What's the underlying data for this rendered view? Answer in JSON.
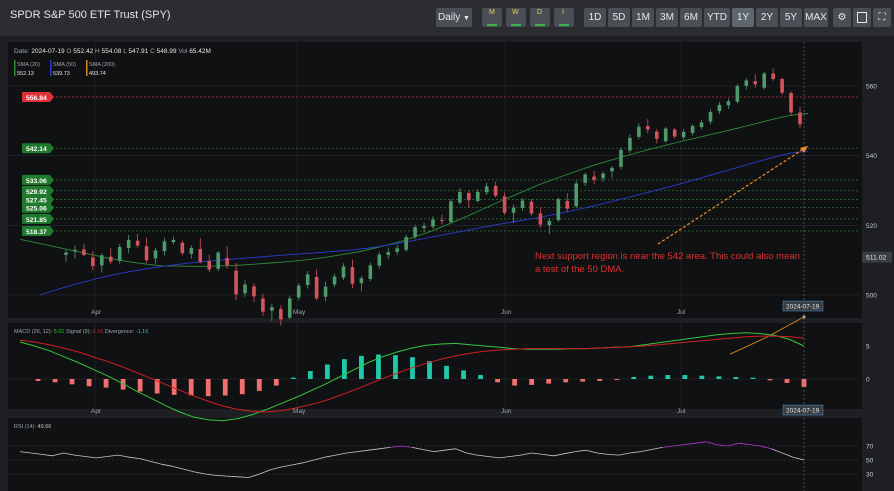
{
  "app": {
    "title": "SPDR S&P 500 ETF Trust (SPY)"
  },
  "toolbar": {
    "interval_label": "Daily",
    "period_buttons": [
      "M",
      "W",
      "D",
      "I"
    ],
    "ranges": [
      "1D",
      "5D",
      "1M",
      "3M",
      "6M",
      "YTD",
      "1Y",
      "2Y",
      "5Y",
      "MAX"
    ],
    "active_range": "1Y",
    "right_icons": [
      "settings-icon",
      "calculator-icon",
      "fullscreen-icon"
    ]
  },
  "ohlc": {
    "date_label": "Date:",
    "date": "2024-07-19",
    "o_label": "O",
    "o": "552.42",
    "h_label": "H",
    "h": "554.08",
    "l_label": "L",
    "l": "547.91",
    "c_label": "C",
    "c": "548.99",
    "vol_label": "Vol",
    "vol": "65.42M"
  },
  "sma_legend": [
    {
      "label": "SMA (20)",
      "value": "552.13",
      "color": "#2e8b3a"
    },
    {
      "label": "SMA (50)",
      "value": "539.73",
      "color": "#2a3bd1"
    },
    {
      "label": "SMA (200)",
      "value": "493.74",
      "color": "#d48a1c"
    }
  ],
  "price_tags": [
    {
      "text": "556.84",
      "price": 556.84,
      "color": "#e0303a"
    },
    {
      "text": "542.14",
      "price": 542.14,
      "color": "#1f7a2e"
    },
    {
      "text": "533.06",
      "price": 533.06,
      "color": "#1f7a2e"
    },
    {
      "text": "529.92",
      "price": 529.92,
      "color": "#1f7a2e"
    },
    {
      "text": "527.45",
      "price": 527.45,
      "color": "#1f7a2e"
    },
    {
      "text": "525.06",
      "price": 525.06,
      "color": "#1f7a2e"
    },
    {
      "text": "521.85",
      "price": 521.85,
      "color": "#1f7a2e"
    },
    {
      "text": "518.37",
      "price": 518.37,
      "color": "#1f7a2e"
    }
  ],
  "last_price_tag": "511.02",
  "annotation": "Next support region is near the 542 area.  This could also mean a test of the 50 DMA.",
  "macd_legend": {
    "label": "MACD (26, 12):",
    "macd": "5.01",
    "signal_label": "Signal (9):",
    "signal": "6.16",
    "div_label": "Divergence:",
    "div": "-1.16"
  },
  "rsi_legend": {
    "label": "RSI (14):",
    "value": "49.66"
  },
  "colors": {
    "up": "#4f9a6a",
    "down": "#d3545c",
    "macd_line": "#35c43e",
    "signal_line": "#d01f24",
    "hist_up": "#20c9a9",
    "hist_down": "#ef6f6f",
    "rsi_line": "#c9c9c9",
    "rsi_over": "#b23bd0",
    "annotation": "#e03030",
    "arrow": "#f08a2c"
  },
  "chart_data": [
    {
      "type": "candlestick",
      "title": "SPDR S&P 500 ETF Trust (SPY)",
      "x_labels": [
        "Apr",
        "May",
        "Jun",
        "Jul"
      ],
      "last_date": "2024-07-19",
      "ylim": [
        490,
        565
      ],
      "yticks": [
        500,
        520,
        540,
        560
      ],
      "grid": true,
      "ohlc": [
        [
          511.5,
          513.0,
          509.5,
          512.2
        ],
        [
          512.5,
          514.2,
          510.5,
          513.0
        ],
        [
          513.1,
          514.8,
          511.2,
          511.5
        ],
        [
          510.8,
          512.6,
          507.0,
          508.3
        ],
        [
          508.5,
          512.0,
          506.4,
          511.4
        ],
        [
          511.0,
          513.4,
          508.9,
          509.6
        ],
        [
          509.8,
          514.7,
          509.0,
          513.8
        ],
        [
          513.5,
          517.2,
          512.0,
          515.8
        ],
        [
          515.6,
          517.5,
          513.6,
          514.2
        ],
        [
          514.0,
          516.4,
          509.2,
          510.0
        ],
        [
          510.5,
          513.6,
          509.0,
          512.8
        ],
        [
          512.6,
          516.4,
          511.3,
          515.4
        ],
        [
          515.2,
          516.8,
          514.5,
          515.8
        ],
        [
          515.0,
          515.6,
          511.4,
          512.0
        ],
        [
          511.8,
          514.3,
          510.4,
          513.5
        ],
        [
          513.2,
          516.3,
          509.0,
          509.5
        ],
        [
          509.8,
          511.6,
          506.5,
          507.3
        ],
        [
          507.5,
          512.6,
          506.8,
          512.2
        ],
        [
          510.6,
          514.0,
          507.6,
          508.6
        ],
        [
          507.0,
          509.2,
          498.5,
          500.2
        ],
        [
          500.5,
          504.2,
          499.5,
          503.0
        ],
        [
          502.5,
          503.4,
          498.0,
          499.6
        ],
        [
          499.0,
          500.4,
          494.0,
          495.2
        ],
        [
          495.5,
          497.5,
          492.5,
          496.5
        ],
        [
          496.0,
          497.0,
          491.2,
          493.0
        ],
        [
          493.5,
          499.8,
          493.0,
          499.0
        ],
        [
          499.3,
          503.3,
          498.5,
          502.7
        ],
        [
          502.9,
          506.9,
          501.8,
          505.9
        ],
        [
          505.2,
          507.3,
          498.5,
          499.0
        ],
        [
          499.5,
          503.9,
          498.2,
          502.4
        ],
        [
          503.0,
          506.1,
          502.3,
          505.3
        ],
        [
          505.0,
          509.1,
          504.3,
          508.2
        ],
        [
          508.0,
          510.2,
          502.0,
          503.2
        ],
        [
          503.4,
          505.5,
          501.1,
          504.8
        ],
        [
          504.6,
          509.3,
          504.0,
          508.5
        ],
        [
          508.4,
          512.4,
          507.6,
          511.6
        ],
        [
          511.5,
          513.6,
          510.3,
          512.3
        ],
        [
          512.4,
          514.4,
          511.5,
          513.4
        ],
        [
          513.0,
          517.3,
          512.4,
          516.6
        ],
        [
          516.8,
          520.2,
          516.0,
          519.5
        ],
        [
          519.2,
          520.8,
          518.0,
          519.8
        ],
        [
          519.6,
          522.6,
          519.0,
          521.7
        ],
        [
          521.5,
          523.1,
          520.3,
          521.2
        ],
        [
          521.0,
          527.5,
          520.6,
          526.9
        ],
        [
          526.5,
          530.7,
          526.0,
          529.6
        ],
        [
          529.3,
          530.0,
          525.0,
          527.2
        ],
        [
          527.0,
          530.3,
          526.6,
          529.6
        ],
        [
          529.5,
          532.3,
          528.7,
          531.2
        ],
        [
          531.3,
          532.5,
          528.0,
          528.5
        ],
        [
          528.3,
          529.4,
          523.0,
          523.6
        ],
        [
          523.6,
          526.0,
          520.7,
          525.1
        ],
        [
          525.0,
          527.8,
          524.1,
          527.1
        ],
        [
          526.8,
          527.6,
          522.8,
          523.4
        ],
        [
          523.4,
          525.2,
          519.3,
          520.2
        ],
        [
          520.0,
          522.1,
          517.5,
          521.3
        ],
        [
          521.5,
          528.0,
          521.0,
          527.5
        ],
        [
          527.0,
          529.2,
          523.9,
          524.8
        ],
        [
          525.5,
          532.8,
          525.0,
          532.0
        ],
        [
          532.2,
          535.1,
          531.3,
          534.6
        ],
        [
          534.0,
          535.6,
          531.9,
          533.1
        ],
        [
          533.5,
          535.5,
          532.4,
          534.9
        ],
        [
          535.5,
          537.0,
          533.5,
          536.5
        ],
        [
          536.8,
          542.4,
          536.1,
          541.7
        ],
        [
          541.5,
          546.1,
          540.7,
          545.1
        ],
        [
          545.4,
          549.3,
          544.7,
          548.3
        ],
        [
          548.5,
          550.5,
          546.4,
          547.5
        ],
        [
          546.9,
          547.6,
          543.5,
          544.8
        ],
        [
          544.2,
          548.3,
          543.7,
          547.8
        ],
        [
          547.5,
          547.9,
          544.9,
          545.5
        ],
        [
          545.3,
          547.7,
          544.6,
          546.8
        ],
        [
          546.5,
          549.0,
          545.8,
          548.5
        ],
        [
          548.2,
          550.3,
          547.5,
          549.5
        ],
        [
          549.8,
          553.3,
          549.0,
          552.5
        ],
        [
          552.8,
          555.4,
          552.0,
          554.6
        ],
        [
          554.5,
          556.5,
          553.4,
          555.6
        ],
        [
          555.5,
          560.6,
          555.0,
          560.0
        ],
        [
          560.0,
          562.3,
          559.0,
          561.6
        ],
        [
          561.4,
          563.3,
          559.5,
          560.5
        ],
        [
          559.5,
          564.1,
          559.0,
          563.6
        ],
        [
          563.6,
          565.0,
          561.5,
          562.0
        ],
        [
          562.0,
          562.4,
          557.4,
          558.1
        ],
        [
          558.0,
          558.5,
          551.5,
          552.4
        ],
        [
          552.4,
          554.1,
          547.9,
          549.0
        ]
      ],
      "sma20": [
        516,
        514.9,
        513.8,
        512.7,
        511.6,
        510.5,
        509.6,
        508.9,
        508.3,
        508.3,
        508.2,
        508.3,
        508.5,
        508.8,
        509.2,
        509.6,
        510.1,
        510.8,
        511.6,
        512.5,
        513.7,
        515.0,
        516.6,
        518.4,
        520.5,
        522.7,
        525.0,
        527.3,
        529.5,
        531.7,
        533.6,
        535.4,
        537.2,
        538.7,
        540.2,
        541.6,
        542.9,
        544.2,
        545.4,
        546.6,
        547.8,
        549.1,
        550.4,
        551.6,
        552.1
      ],
      "sma50": [
        500,
        501.7,
        503.2,
        504.6,
        505.8,
        506.8,
        507.7,
        508.4,
        509.1,
        509.6,
        510.1,
        510.5,
        510.9,
        511.3,
        511.7,
        512.1,
        512.5,
        512.9,
        513.5,
        514.3,
        515.2,
        516.2,
        517.2,
        518.2,
        519.2,
        520.2,
        521.1,
        522.0,
        523.0,
        524.1,
        525.2,
        526.5,
        527.8,
        529.1,
        530.5,
        531.9,
        533.4,
        534.9,
        536.4,
        537.9,
        539.4,
        540.7,
        541.3
      ],
      "sma200": [
        483,
        487.9,
        493.7
      ],
      "horizontal_levels": [
        556.84,
        542.14,
        533.06,
        529.92,
        527.45,
        525.06,
        521.85,
        518.37
      ],
      "right_tag": 511.02,
      "annotation_arrow_to": 542
    },
    {
      "type": "line",
      "title": "MACD (26, 12)",
      "ylim": [
        -8,
        8
      ],
      "yticks": [
        0,
        5
      ],
      "series": [
        {
          "name": "MACD",
          "values": [
            5.6,
            5.0,
            4.3,
            3.4,
            2.5,
            1.5,
            0.5,
            -0.6,
            -1.8,
            -2.9,
            -4.0,
            -5.0,
            -5.8,
            -6.2,
            -6.3,
            -6.0,
            -5.4,
            -4.6,
            -3.7,
            -2.8,
            -1.8,
            -0.8,
            0.3,
            1.4,
            2.5,
            3.4,
            4.1,
            4.7,
            5.1,
            5.3,
            5.4,
            5.2,
            5.0,
            4.8,
            4.6,
            4.5,
            4.5,
            4.5,
            4.6,
            4.6,
            4.7,
            4.8,
            4.9,
            5.2,
            5.5,
            5.8,
            6.1,
            6.4,
            6.7,
            6.9,
            7.0,
            6.9,
            6.6,
            6.0,
            5.0
          ]
        },
        {
          "name": "Signal",
          "values": [
            5.9,
            5.6,
            5.2,
            4.7,
            4.1,
            3.4,
            2.7,
            1.9,
            1.0,
            0.1,
            -0.8,
            -1.7,
            -2.6,
            -3.4,
            -4.1,
            -4.6,
            -4.9,
            -5.0,
            -4.8,
            -4.4,
            -3.9,
            -3.3,
            -2.5,
            -1.7,
            -0.8,
            0.1,
            0.9,
            1.7,
            2.4,
            3.0,
            3.5,
            3.9,
            4.2,
            4.4,
            4.5,
            4.6,
            4.6,
            4.6,
            4.6,
            4.6,
            4.7,
            4.8,
            4.9,
            5.0,
            5.2,
            5.4,
            5.6,
            5.8,
            6.0,
            6.2,
            6.4,
            6.5,
            6.5,
            6.4,
            6.2
          ]
        }
      ],
      "histogram": [
        -0.3,
        -0.5,
        -0.8,
        -1.1,
        -1.3,
        -1.6,
        -1.9,
        -2.2,
        -2.4,
        -2.5,
        -2.6,
        -2.5,
        -2.3,
        -1.8,
        -1.0,
        0.2,
        1.2,
        2.2,
        3.0,
        3.5,
        3.7,
        3.6,
        3.3,
        2.7,
        2.0,
        1.3,
        0.6,
        -0.5,
        -1.0,
        -0.9,
        -0.7,
        -0.5,
        -0.4,
        -0.3,
        -0.1,
        0.3,
        0.5,
        0.6,
        0.6,
        0.5,
        0.4,
        0.3,
        0.2,
        -0.2,
        -0.6,
        -1.2
      ],
      "last_date": "2024-07-19"
    },
    {
      "type": "line",
      "title": "RSI (14)",
      "ylim": [
        20,
        85
      ],
      "yticks": [
        30,
        50,
        70
      ],
      "series": [
        {
          "name": "RSI",
          "values": [
            62,
            60,
            58,
            56,
            60,
            57,
            55,
            53,
            55,
            57,
            54,
            52,
            48,
            44,
            41,
            37,
            33,
            30,
            28,
            27,
            26,
            25,
            30,
            36,
            40,
            43,
            46,
            50,
            54,
            57,
            60,
            62,
            64,
            66,
            68,
            70,
            68,
            65,
            62,
            64,
            66,
            60,
            57,
            55,
            53,
            55,
            57,
            60,
            58,
            56,
            59,
            62,
            64,
            60,
            58,
            57,
            60,
            62,
            65,
            68,
            70,
            72,
            74,
            76,
            72,
            70,
            74,
            72,
            70,
            66,
            60,
            54,
            50
          ]
        }
      ],
      "levels": [
        70,
        50,
        30
      ],
      "last_date": "2024-07-19"
    }
  ]
}
